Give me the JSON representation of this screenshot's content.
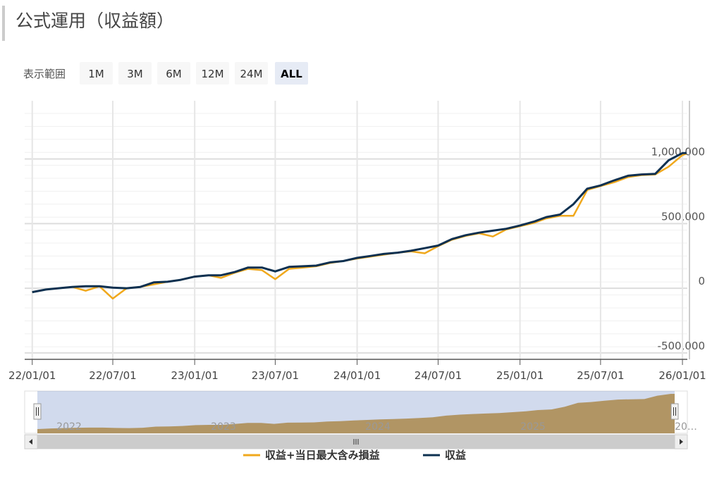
{
  "title": "公式運用（収益額）",
  "range_selector": {
    "label": "表示範囲",
    "buttons": [
      {
        "label": "1M",
        "active": false
      },
      {
        "label": "3M",
        "active": false
      },
      {
        "label": "6M",
        "active": false
      },
      {
        "label": "12M",
        "active": false
      },
      {
        "label": "24M",
        "active": false
      },
      {
        "label": "ALL",
        "active": true
      }
    ]
  },
  "navigator": {
    "labels": [
      "2022",
      "2023",
      "2024",
      "2025",
      "20…"
    ],
    "color": "#d29c3c"
  },
  "chart_data": {
    "type": "line",
    "x": [
      "22/01/01",
      "22/02/01",
      "22/03/01",
      "22/04/01",
      "22/05/01",
      "22/06/01",
      "22/07/01",
      "22/08/01",
      "22/09/01",
      "22/10/01",
      "22/11/01",
      "22/12/01",
      "23/01/01",
      "23/02/01",
      "23/03/01",
      "23/04/01",
      "23/05/01",
      "23/06/01",
      "23/07/01",
      "23/08/01",
      "23/09/01",
      "23/10/01",
      "23/11/01",
      "23/12/01",
      "24/01/01",
      "24/02/01",
      "24/03/01",
      "24/04/01",
      "24/05/01",
      "24/06/01",
      "24/07/01",
      "24/08/01",
      "24/09/01",
      "24/10/01",
      "24/11/01",
      "24/12/01",
      "25/01/01",
      "25/02/01",
      "25/03/01",
      "25/04/01",
      "25/05/01",
      "25/06/01",
      "25/07/01",
      "25/08/01",
      "25/09/01",
      "25/10/01",
      "25/11/01",
      "25/12/01",
      "26/01/01",
      "26/01/10"
    ],
    "xlim": [
      "21/12/15",
      "26/01/12"
    ],
    "xticks": [
      "22/01/01",
      "22/07/01",
      "23/01/01",
      "23/07/01",
      "24/01/01",
      "24/07/01",
      "25/01/01",
      "25/07/01",
      "26/01/01"
    ],
    "ylim": [
      -550000,
      1450000
    ],
    "yticks": [
      {
        "value": -500000,
        "label": "-500,000"
      },
      0,
      {
        "value": 500000,
        "label": "500,000"
      },
      {
        "value": 1000000,
        "label": "1,000,000"
      }
    ],
    "grid": true,
    "series": [
      {
        "name": "収益+当日最大含み損益",
        "color": "#f0a81c",
        "values": [
          -30000,
          -10000,
          0,
          10000,
          -20000,
          15000,
          -80000,
          0,
          10000,
          30000,
          50000,
          65000,
          90000,
          100000,
          80000,
          120000,
          150000,
          140000,
          70000,
          150000,
          160000,
          170000,
          195000,
          210000,
          230000,
          245000,
          260000,
          275000,
          285000,
          270000,
          325000,
          375000,
          405000,
          425000,
          400000,
          455000,
          480000,
          505000,
          540000,
          560000,
          560000,
          760000,
          790000,
          820000,
          860000,
          875000,
          880000,
          940000,
          1030000,
          1040000
        ]
      },
      {
        "name": "収益",
        "color": "#0d3050",
        "values": [
          -30000,
          -10000,
          0,
          10000,
          15000,
          15000,
          5000,
          0,
          10000,
          45000,
          50000,
          65000,
          90000,
          100000,
          100000,
          125000,
          160000,
          160000,
          130000,
          165000,
          170000,
          175000,
          200000,
          210000,
          235000,
          250000,
          265000,
          275000,
          290000,
          310000,
          330000,
          380000,
          410000,
          430000,
          445000,
          460000,
          485000,
          515000,
          550000,
          570000,
          650000,
          770000,
          795000,
          835000,
          870000,
          880000,
          885000,
          990000,
          1045000,
          1045000
        ]
      }
    ]
  }
}
